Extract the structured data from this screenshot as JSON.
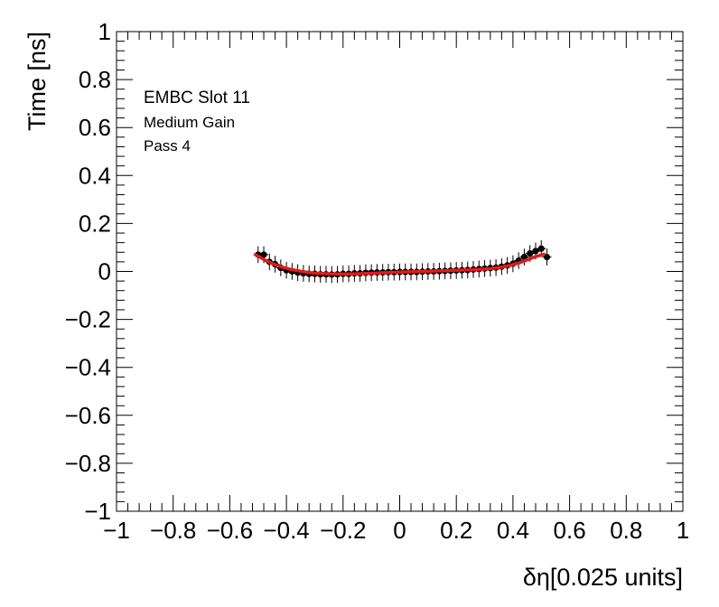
{
  "chart_data": {
    "type": "scatter",
    "xlabel": "δη[0.025 units]",
    "ylabel": "Time [ns]",
    "xlim": [
      -1,
      1
    ],
    "ylim": [
      -1,
      1
    ],
    "x_ticks": [
      "−1",
      "−0.8",
      "−0.6",
      "−0.4",
      "−0.2",
      "0",
      "0.2",
      "0.4",
      "0.6",
      "0.8",
      "1"
    ],
    "y_ticks": [
      "−1",
      "−0.8",
      "−0.6",
      "−0.4",
      "−0.2",
      "0",
      "0.2",
      "0.4",
      "0.6",
      "0.8",
      "1"
    ],
    "annotations": [
      "EMBC Slot 11",
      "Medium Gain",
      "Pass 4"
    ],
    "grid": false,
    "series": [
      {
        "marker": "filled-circle",
        "color": "#000000",
        "x": [
          -0.5,
          -0.48,
          -0.46,
          -0.44,
          -0.42,
          -0.4,
          -0.38,
          -0.36,
          -0.34,
          -0.32,
          -0.3,
          -0.28,
          -0.26,
          -0.24,
          -0.22,
          -0.2,
          -0.18,
          -0.16,
          -0.14,
          -0.12,
          -0.1,
          -0.08,
          -0.06,
          -0.04,
          -0.02,
          0.0,
          0.02,
          0.04,
          0.06,
          0.08,
          0.1,
          0.12,
          0.14,
          0.16,
          0.18,
          0.2,
          0.22,
          0.24,
          0.26,
          0.28,
          0.3,
          0.32,
          0.34,
          0.36,
          0.38,
          0.4,
          0.42,
          0.44,
          0.46,
          0.48,
          0.5,
          0.52
        ],
        "y": [
          0.07,
          0.07,
          0.04,
          0.03,
          0.015,
          0.005,
          0.0,
          -0.005,
          -0.008,
          -0.01,
          -0.01,
          -0.012,
          -0.012,
          -0.013,
          -0.012,
          -0.01,
          -0.01,
          -0.008,
          -0.008,
          -0.006,
          -0.005,
          -0.004,
          -0.004,
          -0.003,
          -0.003,
          -0.002,
          -0.002,
          -0.002,
          -0.002,
          -0.001,
          0.0,
          0.0,
          0.001,
          0.002,
          0.003,
          0.004,
          0.005,
          0.006,
          0.008,
          0.01,
          0.012,
          0.014,
          0.016,
          0.02,
          0.025,
          0.032,
          0.045,
          0.06,
          0.075,
          0.085,
          0.095,
          0.06
        ],
        "y_error": 0.035
      },
      {
        "type": "line",
        "color": "#e31a1c",
        "x": [
          -0.51,
          -0.48,
          -0.45,
          -0.42,
          -0.39,
          -0.36,
          -0.33,
          -0.3,
          -0.25,
          -0.2,
          -0.15,
          -0.1,
          -0.05,
          0.0,
          0.05,
          0.1,
          0.15,
          0.2,
          0.25,
          0.3,
          0.33,
          0.36,
          0.39,
          0.42,
          0.45,
          0.48,
          0.51
        ],
        "y": [
          0.07,
          0.05,
          0.033,
          0.02,
          0.01,
          0.003,
          -0.003,
          -0.007,
          -0.01,
          -0.011,
          -0.01,
          -0.008,
          -0.005,
          -0.003,
          -0.001,
          0.001,
          0.003,
          0.005,
          0.007,
          0.01,
          0.013,
          0.018,
          0.025,
          0.035,
          0.048,
          0.062,
          0.072
        ]
      }
    ]
  }
}
